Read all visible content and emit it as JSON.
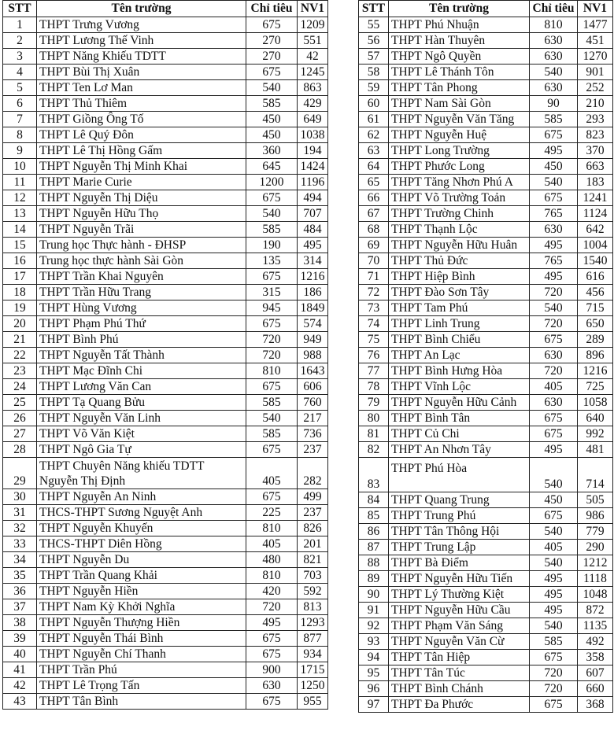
{
  "headers": {
    "stt": "STT",
    "name": "Tên trường",
    "quota": "Chỉ tiêu",
    "nv1": "NV1"
  },
  "left_table": [
    [
      "1",
      "THPT Trưng Vương",
      "675",
      "1209"
    ],
    [
      "2",
      "THPT Lương Thế Vinh",
      "270",
      "551"
    ],
    [
      "3",
      "THPT Năng Khiếu TDTT",
      "270",
      "42"
    ],
    [
      "4",
      "THPT Bùi Thị Xuân",
      "675",
      "1245"
    ],
    [
      "5",
      "THPT Ten Lơ Man",
      "540",
      "863"
    ],
    [
      "6",
      "THPT Thủ Thiêm",
      "585",
      "429"
    ],
    [
      "7",
      "THPT Giồng Ông Tố",
      "450",
      "649"
    ],
    [
      "8",
      "THPT Lê Quý Đôn",
      "450",
      "1038"
    ],
    [
      "9",
      "THPT Lê Thị Hồng Gấm",
      "360",
      "194"
    ],
    [
      "10",
      "THPT Nguyễn Thị Minh Khai",
      "645",
      "1424"
    ],
    [
      "11",
      "THPT Marie Curie",
      "1200",
      "1196"
    ],
    [
      "12",
      "THPT Nguyễn Thị Diệu",
      "675",
      "494"
    ],
    [
      "13",
      "THPT Nguyễn Hữu Thọ",
      "540",
      "707"
    ],
    [
      "14",
      "THPT Nguyễn Trãi",
      "585",
      "484"
    ],
    [
      "15",
      "Trung học Thực hành - ĐHSP",
      "190",
      "495"
    ],
    [
      "16",
      "Trung học thực hành Sài Gòn",
      "135",
      "314"
    ],
    [
      "17",
      "THPT Trần Khai Nguyên",
      "675",
      "1216"
    ],
    [
      "18",
      "THPT Trần Hữu Trang",
      "315",
      "186"
    ],
    [
      "19",
      "THPT Hùng Vương",
      "945",
      "1849"
    ],
    [
      "20",
      "THPT Phạm Phú Thứ",
      "675",
      "574"
    ],
    [
      "21",
      "THPT Bình Phú",
      "720",
      "949"
    ],
    [
      "22",
      "THPT Nguyễn Tất Thành",
      "720",
      "988"
    ],
    [
      "23",
      "THPT Mạc Đĩnh Chi",
      "810",
      "1643"
    ],
    [
      "24",
      "THPT Lương Văn Can",
      "675",
      "606"
    ],
    [
      "25",
      "THPT Tạ Quang Bửu",
      "585",
      "760"
    ],
    [
      "26",
      "THPT Nguyễn Văn Linh",
      "540",
      "217"
    ],
    [
      "27",
      "THPT Võ Văn Kiệt",
      "585",
      "736"
    ],
    [
      "28",
      "THPT Ngô Gia Tự",
      "675",
      "237"
    ],
    [
      "29",
      "THPT Chuyên Năng khiếu TDTT\nNguyễn Thị Định",
      "405",
      "282"
    ],
    [
      "30",
      "THPT Nguyễn An Ninh",
      "675",
      "499"
    ],
    [
      "31",
      "THCS-THPT Sương Nguyệt Anh",
      "225",
      "237"
    ],
    [
      "32",
      "THPT Nguyễn Khuyến",
      "810",
      "826"
    ],
    [
      "33",
      "THCS-THPT Diên Hồng",
      "405",
      "201"
    ],
    [
      "34",
      "THPT Nguyễn Du",
      "480",
      "821"
    ],
    [
      "35",
      "THPT Trần Quang Khải",
      "810",
      "703"
    ],
    [
      "36",
      "THPT Nguyễn Hiền",
      "420",
      "592"
    ],
    [
      "37",
      "THPT Nam Kỳ Khởi Nghĩa",
      "720",
      "813"
    ],
    [
      "38",
      "THPT Nguyễn Thượng Hiền",
      "495",
      "1293"
    ],
    [
      "39",
      "THPT Nguyễn Thái Bình",
      "675",
      "877"
    ],
    [
      "40",
      "THPT Nguyễn Chí Thanh",
      "675",
      "934"
    ],
    [
      "41",
      "THPT Trần Phú",
      "900",
      "1715"
    ],
    [
      "42",
      "THPT Lê Trọng Tấn",
      "630",
      "1250"
    ],
    [
      "43",
      "THPT Tân Bình",
      "675",
      "955"
    ]
  ],
  "right_table": [
    [
      "55",
      "THPT Phú Nhuận",
      "810",
      "1477"
    ],
    [
      "56",
      "THPT Hàn Thuyên",
      "630",
      "451"
    ],
    [
      "57",
      "THPT Ngô Quyền",
      "630",
      "1270"
    ],
    [
      "58",
      "THPT Lê Thánh Tôn",
      "540",
      "901"
    ],
    [
      "59",
      "THPT Tân Phong",
      "630",
      "252"
    ],
    [
      "60",
      "THPT Nam Sài Gòn",
      "90",
      "210"
    ],
    [
      "61",
      "THPT Nguyễn Văn Tăng",
      "585",
      "293"
    ],
    [
      "62",
      "THPT Nguyễn Huệ",
      "675",
      "823"
    ],
    [
      "63",
      "THPT Long Trường",
      "495",
      "370"
    ],
    [
      "64",
      "THPT Phước Long",
      "450",
      "663"
    ],
    [
      "65",
      "THPT Tăng Nhơn Phú A",
      "540",
      "183"
    ],
    [
      "66",
      "THPT Võ Trường Toản",
      "675",
      "1241"
    ],
    [
      "67",
      "THPT Trường Chinh",
      "765",
      "1124"
    ],
    [
      "68",
      "THPT Thạnh Lộc",
      "630",
      "642"
    ],
    [
      "69",
      "THPT Nguyễn Hữu Huân",
      "495",
      "1004"
    ],
    [
      "70",
      "THPT Thủ Đức",
      "765",
      "1540"
    ],
    [
      "71",
      "THPT Hiệp Bình",
      "495",
      "616"
    ],
    [
      "72",
      "THPT Đào Sơn Tây",
      "720",
      "456"
    ],
    [
      "73",
      "THPT Tam Phú",
      "540",
      "715"
    ],
    [
      "74",
      "THPT Linh Trung",
      "720",
      "650"
    ],
    [
      "75",
      "THPT Bình Chiểu",
      "675",
      "289"
    ],
    [
      "76",
      "THPT An Lạc",
      "630",
      "896"
    ],
    [
      "77",
      "THPT Bình Hưng Hòa",
      "720",
      "1216"
    ],
    [
      "78",
      "THPT Vĩnh Lộc",
      "405",
      "725"
    ],
    [
      "79",
      "THPT Nguyễn Hữu Cảnh",
      "630",
      "1058"
    ],
    [
      "80",
      "THPT Bình Tân",
      "675",
      "640"
    ],
    [
      "81",
      "THPT Củ Chi",
      "675",
      "992"
    ],
    [
      "82",
      "THPT An Nhơn Tây",
      "495",
      "481"
    ],
    [
      "83",
      "THPT Phú Hòa",
      "540",
      "714"
    ],
    [
      "84",
      "THPT Quang Trung",
      "450",
      "505"
    ],
    [
      "85",
      "THPT Trung Phú",
      "675",
      "986"
    ],
    [
      "86",
      "THPT Tân Thông Hội",
      "540",
      "779"
    ],
    [
      "87",
      "THPT Trung Lập",
      "405",
      "290"
    ],
    [
      "88",
      "THPT Bà Điểm",
      "540",
      "1212"
    ],
    [
      "89",
      "THPT Nguyễn Hữu Tiến",
      "495",
      "1118"
    ],
    [
      "90",
      "THPT Lý Thường Kiệt",
      "495",
      "1048"
    ],
    [
      "91",
      "THPT Nguyễn Hữu Cầu",
      "495",
      "872"
    ],
    [
      "92",
      "THPT Phạm Văn Sáng",
      "540",
      "1135"
    ],
    [
      "93",
      "THPT Nguyễn Văn Cừ",
      "585",
      "492"
    ],
    [
      "94",
      "THPT Tân Hiệp",
      "675",
      "358"
    ],
    [
      "95",
      "THPT Tân Túc",
      "720",
      "607"
    ],
    [
      "96",
      "THPT Bình Chánh",
      "720",
      "660"
    ],
    [
      "97",
      "THPT Đa Phước",
      "675",
      "368"
    ]
  ]
}
